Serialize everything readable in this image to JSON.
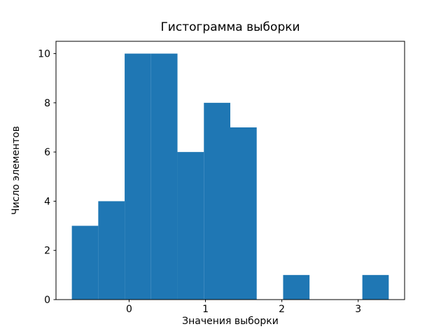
{
  "chart_data": {
    "type": "bar",
    "subtype": "histogram",
    "title": "Гистограмма выборки",
    "xlabel": "Значения выборки",
    "ylabel": "Число элементов",
    "bin_edges": [
      -0.75,
      -0.4042,
      -0.0583,
      0.2875,
      0.6333,
      0.9792,
      1.325,
      1.6708,
      2.0167,
      2.3625,
      2.7083,
      3.0542,
      3.4
    ],
    "counts": [
      3,
      4,
      10,
      10,
      6,
      8,
      7,
      0,
      1,
      0,
      0,
      1
    ],
    "x_ticks": [
      0,
      1,
      2,
      3
    ],
    "y_ticks": [
      0,
      2,
      4,
      6,
      8,
      10
    ],
    "xlim": [
      -0.9575,
      3.6075
    ],
    "ylim": [
      0,
      10.5
    ],
    "bar_color": "#1f77b4",
    "axis_color": "#000000",
    "grid": false,
    "legend": false
  }
}
